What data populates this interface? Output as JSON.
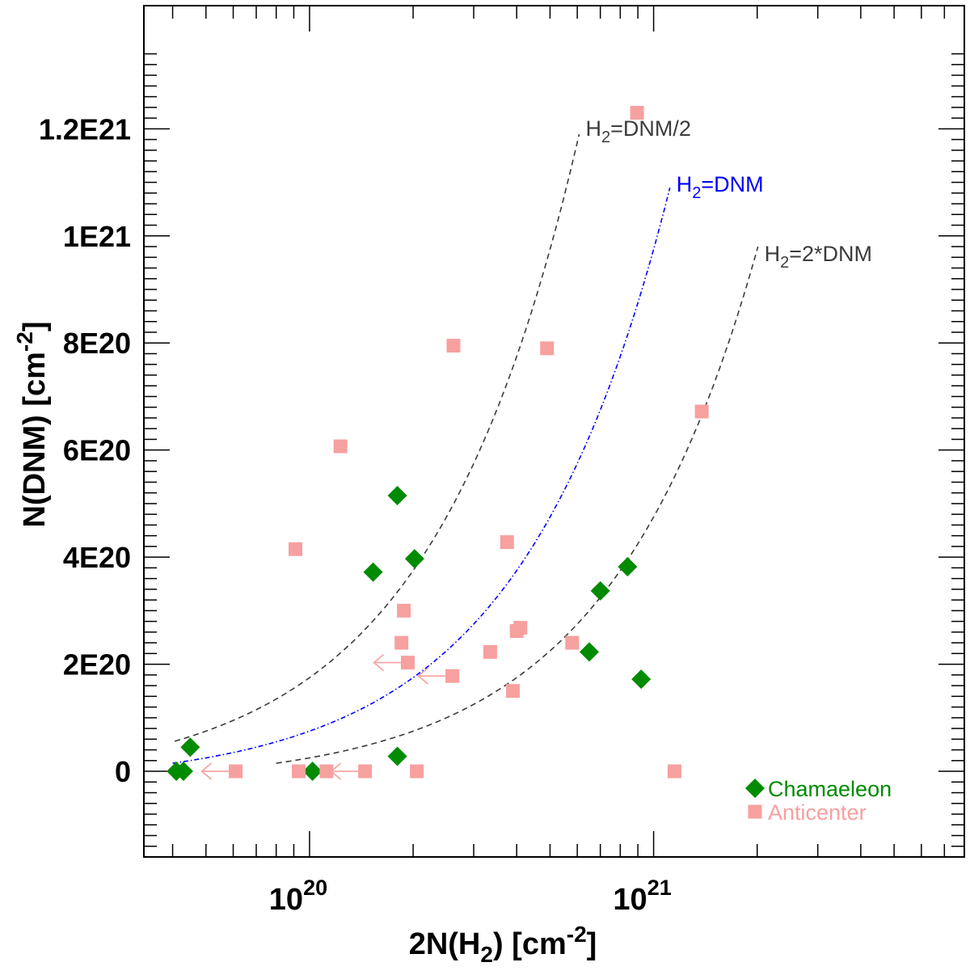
{
  "chart_data": {
    "type": "scatter",
    "xlabel": "2N(H2) [cm-2]",
    "ylabel": "N(DNM) [cm-2]",
    "x_scale": "log",
    "xlim": [
      3.3e+19,
      8e+21
    ],
    "ylim": [
      -1.6e+20,
      1.43e+21
    ],
    "x_tick_labels": [
      {
        "value": 1e+20,
        "base": "10",
        "exp": "20"
      },
      {
        "value": 1e+21,
        "base": "10",
        "exp": "21"
      }
    ],
    "y_tick_labels": [
      {
        "value": 0,
        "label": "0"
      },
      {
        "value": 2e+20,
        "label": "2E20"
      },
      {
        "value": 4e+20,
        "label": "4E20"
      },
      {
        "value": 6e+20,
        "label": "6E20"
      },
      {
        "value": 8e+20,
        "label": "8E20"
      },
      {
        "value": 1e+21,
        "label": "1E21"
      },
      {
        "value": 1.2e+21,
        "label": "1.2E21"
      }
    ],
    "series": [
      {
        "name": "Chamaeleon",
        "marker": "diamond",
        "color": "#008b00",
        "points": [
          {
            "x": 4.1e+19,
            "y": 0
          },
          {
            "x": 4.3e+19,
            "y": 0
          },
          {
            "x": 4.5e+19,
            "y": 4.5e+19
          },
          {
            "x": 1.02e+20,
            "y": 0
          },
          {
            "x": 1.53e+20,
            "y": 3.72e+20
          },
          {
            "x": 1.8e+20,
            "y": 5.15e+20
          },
          {
            "x": 1.8e+20,
            "y": 2.8e+19
          },
          {
            "x": 2.02e+20,
            "y": 3.97e+20
          },
          {
            "x": 6.5e+20,
            "y": 2.23e+20
          },
          {
            "x": 7e+20,
            "y": 3.37e+20
          },
          {
            "x": 8.4e+20,
            "y": 3.82e+20
          },
          {
            "x": 9.2e+20,
            "y": 1.72e+20
          }
        ]
      },
      {
        "name": "Anticenter",
        "marker": "square",
        "color": "#f7a0a0",
        "points": [
          {
            "x": 6.1e+19,
            "y": 0,
            "upper_limit": true
          },
          {
            "x": 9.1e+19,
            "y": 4.15e+20
          },
          {
            "x": 9.3e+19,
            "y": 0
          },
          {
            "x": 1.12e+20,
            "y": 0
          },
          {
            "x": 1.23e+20,
            "y": 6.07e+20
          },
          {
            "x": 1.45e+20,
            "y": 0,
            "upper_limit": true
          },
          {
            "x": 1.85e+20,
            "y": 2.4e+20
          },
          {
            "x": 1.88e+20,
            "y": 3e+20
          },
          {
            "x": 1.93e+20,
            "y": 2.03e+20,
            "upper_limit": true
          },
          {
            "x": 2.05e+20,
            "y": 0
          },
          {
            "x": 2.6e+20,
            "y": 1.78e+20,
            "upper_limit": true
          },
          {
            "x": 2.62e+20,
            "y": 7.95e+20
          },
          {
            "x": 3.35e+20,
            "y": 2.23e+20
          },
          {
            "x": 3.75e+20,
            "y": 4.28e+20
          },
          {
            "x": 3.9e+20,
            "y": 1.5e+20
          },
          {
            "x": 4e+20,
            "y": 2.62e+20
          },
          {
            "x": 4.1e+20,
            "y": 2.68e+20
          },
          {
            "x": 4.9e+20,
            "y": 7.9e+20
          },
          {
            "x": 5.8e+20,
            "y": 2.4e+20
          },
          {
            "x": 8.95e+20,
            "y": 1.23e+21
          },
          {
            "x": 1.15e+21,
            "y": 0
          },
          {
            "x": 1.38e+21,
            "y": 6.72e+20
          }
        ]
      }
    ],
    "reference_curves": [
      {
        "label_main": "H",
        "label_sub": "2",
        "label_rest": "=DNM/2",
        "ratio": 0.5,
        "color": "#3c3c3c",
        "dash": "dashed"
      },
      {
        "label_main": "H",
        "label_sub": "2",
        "label_rest": "=DNM",
        "ratio": 1,
        "color": "#0000ff",
        "dash": "dash-dot"
      },
      {
        "label_main": "H",
        "label_sub": "2",
        "label_rest": "=2*DNM",
        "ratio": 2,
        "color": "#3c3c3c",
        "dash": "dashed"
      }
    ],
    "legend": {
      "placement": "bottom-right"
    },
    "grid": false
  },
  "axis_titles": {
    "x_main": "2N(H",
    "x_sub": "2",
    "x_rest": ") [cm",
    "x_sup": "-2",
    "x_end": "]",
    "y_main": "N(DNM) [cm",
    "y_sup": "-2",
    "y_end": "]"
  }
}
